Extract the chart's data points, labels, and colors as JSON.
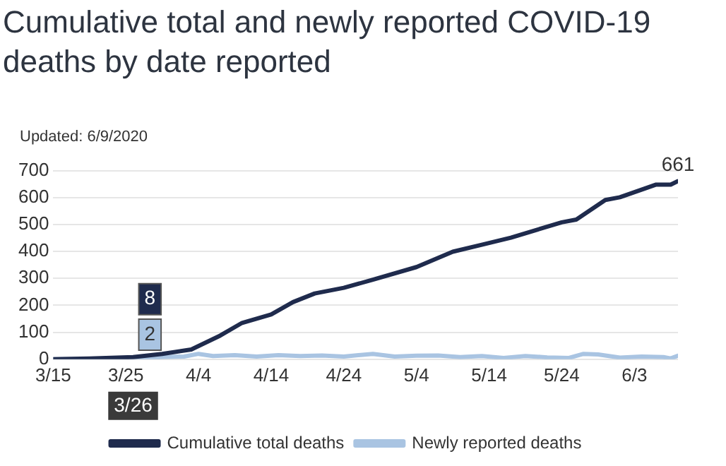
{
  "chart_data": {
    "type": "line",
    "title": "Cumulative total and newly reported COVID-19 deaths by date reported",
    "subtitle": "Updated: 6/9/2020",
    "series": [
      {
        "name": "Cumulative total deaths",
        "color": "#1f2b4d",
        "x": [
          "2020-03-15",
          "2020-03-20",
          "2020-03-26",
          "2020-03-30",
          "2020-04-03",
          "2020-04-07",
          "2020-04-10",
          "2020-04-14",
          "2020-04-17",
          "2020-04-20",
          "2020-04-24",
          "2020-04-28",
          "2020-05-04",
          "2020-05-09",
          "2020-05-13",
          "2020-05-17",
          "2020-05-24",
          "2020-05-26",
          "2020-05-30",
          "2020-06-01",
          "2020-06-06",
          "2020-06-08",
          "2020-06-09"
        ],
        "values": [
          0,
          3,
          8,
          20,
          36,
          88,
          135,
          166,
          212,
          244,
          265,
          295,
          342,
          399,
          425,
          451,
          508,
          518,
          591,
          601,
          648,
          648,
          661
        ]
      },
      {
        "name": "Newly reported deaths",
        "color": "#a9c4e2",
        "x": [
          "2020-03-15",
          "2020-03-20",
          "2020-03-26",
          "2020-03-30",
          "2020-04-02",
          "2020-04-04",
          "2020-04-06",
          "2020-04-09",
          "2020-04-12",
          "2020-04-15",
          "2020-04-18",
          "2020-04-21",
          "2020-04-24",
          "2020-04-28",
          "2020-05-01",
          "2020-05-04",
          "2020-05-07",
          "2020-05-10",
          "2020-05-13",
          "2020-05-16",
          "2020-05-19",
          "2020-05-22",
          "2020-05-25",
          "2020-05-27",
          "2020-05-29",
          "2020-06-01",
          "2020-06-04",
          "2020-06-07",
          "2020-06-08",
          "2020-06-09"
        ],
        "values": [
          0,
          1,
          2,
          8,
          10,
          20,
          12,
          15,
          10,
          15,
          12,
          14,
          10,
          20,
          10,
          13,
          14,
          8,
          12,
          5,
          12,
          7,
          5,
          20,
          18,
          6,
          10,
          8,
          3,
          13
        ]
      }
    ],
    "xlim": [
      "2020-03-15",
      "2020-06-09"
    ],
    "xticks": [
      {
        "value": "2020-03-15",
        "label": "3/15"
      },
      {
        "value": "2020-03-25",
        "label": "3/25"
      },
      {
        "value": "2020-04-04",
        "label": "4/4"
      },
      {
        "value": "2020-04-14",
        "label": "4/14"
      },
      {
        "value": "2020-04-24",
        "label": "4/24"
      },
      {
        "value": "2020-05-04",
        "label": "5/4"
      },
      {
        "value": "2020-05-14",
        "label": "5/14"
      },
      {
        "value": "2020-05-24",
        "label": "5/24"
      },
      {
        "value": "2020-06-03",
        "label": "6/3"
      }
    ],
    "ylim": [
      0,
      700
    ],
    "yticks": [
      0,
      100,
      200,
      300,
      400,
      500,
      600,
      700
    ],
    "grid": "y",
    "legend": "bottom",
    "marker": "none",
    "line_style": "solid",
    "annotations": [
      {
        "text": "8",
        "x": "2020-03-26",
        "y": 8
      },
      {
        "text": "2",
        "x": "2020-03-26",
        "y": 2
      },
      "3/26",
      {
        "text": "661",
        "x": "2020-06-09",
        "y": 661
      }
    ]
  }
}
